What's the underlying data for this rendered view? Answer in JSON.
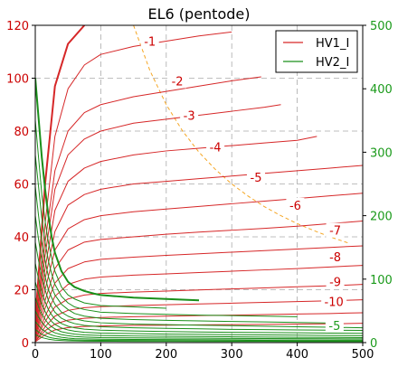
{
  "chart_data": {
    "type": "line",
    "title": "EL6 (pentode)",
    "xlabel": "",
    "ylabel": "",
    "xlim": [
      0,
      500
    ],
    "ylim": [
      0,
      120
    ],
    "ylim_right": [
      0,
      500
    ],
    "grid": true,
    "xticks": [
      0,
      100,
      200,
      300,
      400,
      500
    ],
    "yticks_left": [
      0,
      20,
      40,
      60,
      80,
      100,
      120
    ],
    "yticks_right": [
      0,
      100,
      200,
      300,
      400,
      500
    ],
    "legend": {
      "placement": "top-right",
      "entries": [
        {
          "label": "HV1_I",
          "color": "#d62728"
        },
        {
          "label": "HV2_I",
          "color": "#1a8f1a"
        }
      ]
    },
    "colors": {
      "left_axis": "#cc0000",
      "right_axis": "#1a9a1a",
      "hv1": "#d62728",
      "hv2": "#1a8f1a",
      "power_limit": "#f5a623",
      "grid": "#aaaaaa"
    },
    "power_limit": {
      "style": "dashed",
      "x": [
        150,
        175,
        200,
        225,
        250,
        275,
        300,
        325,
        350,
        375,
        400,
        425,
        450,
        480
      ],
      "y": [
        120.0,
        102.9,
        90.0,
        80.0,
        72.0,
        65.5,
        60.0,
        55.4,
        51.4,
        48.0,
        45.0,
        42.4,
        40.0,
        37.5
      ]
    },
    "series": [
      {
        "name": "HV1_I",
        "color": "#d62728",
        "width": 2,
        "x": [
          0,
          15,
          30,
          50,
          75
        ],
        "y": [
          8,
          60,
          97,
          113,
          120
        ]
      },
      {
        "name": "HV1_I",
        "color": "#d62728",
        "width": 1,
        "x": [
          0,
          15,
          30,
          50,
          75,
          100,
          150,
          200,
          250,
          300
        ],
        "y": [
          5,
          45,
          78,
          96,
          105,
          109,
          112,
          114,
          116,
          117.5
        ]
      },
      {
        "name": "HV1_I",
        "color": "#d62728",
        "width": 1,
        "x": [
          0,
          15,
          30,
          50,
          75,
          100,
          150,
          200,
          250,
          300,
          345
        ],
        "y": [
          4,
          38,
          65,
          80,
          87,
          90,
          93,
          95,
          97,
          99,
          100.5
        ]
      },
      {
        "name": "HV1_I",
        "color": "#d62728",
        "width": 1,
        "x": [
          0,
          15,
          30,
          50,
          75,
          100,
          150,
          200,
          250,
          300,
          350,
          375
        ],
        "y": [
          4,
          33,
          58,
          71,
          77,
          80,
          83,
          84.5,
          86,
          87.5,
          89,
          90
        ]
      },
      {
        "name": "HV1_I",
        "color": "#d62728",
        "width": 1,
        "x": [
          0,
          15,
          30,
          50,
          75,
          100,
          150,
          200,
          250,
          300,
          350,
          400,
          430
        ],
        "y": [
          3,
          28,
          50,
          61,
          66,
          68.5,
          71,
          72.5,
          73.5,
          74.5,
          75.5,
          76.5,
          78
        ]
      },
      {
        "name": "HV1_I",
        "color": "#d62728",
        "width": 1,
        "x": [
          0,
          15,
          30,
          50,
          75,
          100,
          150,
          200,
          250,
          300,
          350,
          400,
          450,
          500
        ],
        "y": [
          3,
          24,
          42,
          52,
          56,
          58,
          60,
          61,
          62,
          63,
          64,
          65,
          66,
          67
        ]
      },
      {
        "name": "HV1_I",
        "color": "#d62728",
        "width": 1,
        "x": [
          0,
          15,
          30,
          50,
          75,
          100,
          150,
          200,
          250,
          300,
          350,
          400,
          450,
          500
        ],
        "y": [
          2,
          20,
          35,
          43,
          46.5,
          48,
          49.5,
          50.5,
          51.5,
          52.5,
          53.5,
          54.5,
          55.5,
          56.5
        ]
      },
      {
        "name": "HV1_I",
        "color": "#d62728",
        "width": 1,
        "x": [
          0,
          15,
          30,
          50,
          75,
          100,
          150,
          200,
          250,
          300,
          350,
          400,
          450,
          500
        ],
        "y": [
          2,
          16,
          28,
          35,
          38,
          39,
          40,
          41,
          41.8,
          42.5,
          43.2,
          44,
          45,
          46
        ]
      },
      {
        "name": "HV1_I",
        "color": "#d62728",
        "width": 1,
        "x": [
          0,
          15,
          30,
          50,
          75,
          100,
          150,
          200,
          250,
          300,
          350,
          400,
          450,
          500
        ],
        "y": [
          1.5,
          13,
          22.5,
          28,
          30.5,
          31.5,
          32.3,
          33,
          33.6,
          34.2,
          34.8,
          35.4,
          36,
          36.6
        ]
      },
      {
        "name": "HV1_I",
        "color": "#d62728",
        "width": 1,
        "x": [
          0,
          15,
          30,
          50,
          75,
          100,
          150,
          200,
          250,
          300,
          350,
          400,
          450,
          500
        ],
        "y": [
          1,
          10,
          17.5,
          22,
          24,
          24.8,
          25.5,
          26,
          26.5,
          27,
          27.5,
          28,
          28.6,
          29.2
        ]
      },
      {
        "name": "HV1_I",
        "color": "#d62728",
        "width": 1,
        "x": [
          0,
          15,
          30,
          50,
          75,
          100,
          150,
          200,
          250,
          300,
          350,
          400,
          450,
          500
        ],
        "y": [
          1,
          8,
          13.5,
          16.5,
          18,
          18.6,
          19.1,
          19.5,
          19.9,
          20.3,
          20.7,
          21.1,
          21.5,
          22
        ]
      },
      {
        "name": "HV1_I",
        "color": "#d62728",
        "width": 1,
        "x": [
          0,
          15,
          30,
          50,
          75,
          100,
          150,
          200,
          250,
          300,
          350,
          400,
          450,
          500
        ],
        "y": [
          0.5,
          6,
          10,
          12.2,
          13.2,
          13.6,
          14,
          14.3,
          14.6,
          14.9,
          15.2,
          15.5,
          15.8,
          16.2
        ]
      },
      {
        "name": "HV1_I",
        "color": "#d62728",
        "width": 1,
        "x": [
          0,
          15,
          30,
          50,
          75,
          100,
          150,
          200,
          250,
          300,
          350,
          400,
          450,
          500
        ],
        "y": [
          0.5,
          4.5,
          7,
          8.5,
          9.2,
          9.5,
          9.8,
          10,
          10.2,
          10.4,
          10.6,
          10.8,
          11,
          11.3
        ]
      },
      {
        "name": "HV1_I",
        "color": "#d62728",
        "width": 1,
        "x": [
          0,
          15,
          30,
          50,
          75,
          100,
          150,
          200,
          250,
          300,
          350,
          400,
          450,
          500
        ],
        "y": [
          0.3,
          3,
          4.8,
          5.7,
          6.1,
          6.3,
          6.5,
          6.6,
          6.7,
          6.8,
          6.9,
          7,
          7.1,
          7.3
        ]
      },
      {
        "name": "HV2_I",
        "color": "#1a8f1a",
        "width": 2,
        "x": [
          0,
          5,
          10,
          15,
          20,
          25,
          30,
          40,
          50,
          60,
          75,
          90,
          100,
          125,
          150,
          200,
          250
        ],
        "y": [
          100,
          85,
          70,
          58,
          48,
          40,
          34,
          27,
          23,
          21,
          19.5,
          18.5,
          18,
          17.5,
          17,
          16.5,
          16
        ]
      },
      {
        "name": "HV2_I",
        "color": "#1a8f1a",
        "width": 1,
        "x": [
          0,
          5,
          10,
          15,
          20,
          25,
          30,
          40,
          50,
          60,
          75,
          100,
          150,
          200
        ],
        "y": [
          84,
          70,
          56,
          46,
          38,
          32,
          27,
          21,
          18,
          16.5,
          15,
          14,
          13.5,
          13
        ]
      },
      {
        "name": "HV2_I",
        "color": "#1a8f1a",
        "width": 1,
        "x": [
          0,
          5,
          10,
          15,
          20,
          25,
          30,
          40,
          50,
          60,
          75,
          100,
          150,
          200,
          250,
          300,
          350,
          400
        ],
        "y": [
          71,
          59,
          47,
          38,
          31,
          26,
          22,
          17.5,
          15,
          13.5,
          12.5,
          11.5,
          11,
          10.7,
          10.4,
          10.2,
          10,
          9.8
        ]
      },
      {
        "name": "HV2_I",
        "color": "#1a8f1a",
        "width": 1,
        "x": [
          0,
          5,
          10,
          15,
          20,
          25,
          30,
          40,
          50,
          60,
          75,
          100,
          150,
          200,
          250,
          300,
          350,
          400,
          450
        ],
        "y": [
          59,
          48,
          38,
          31,
          25,
          21,
          18,
          14.5,
          12.5,
          11,
          10,
          9.2,
          8.7,
          8.4,
          8.2,
          8,
          7.8,
          7.6,
          7.4
        ]
      },
      {
        "name": "HV2_I",
        "color": "#1a8f1a",
        "width": 1,
        "x": [
          0,
          5,
          10,
          15,
          20,
          25,
          30,
          40,
          50,
          60,
          75,
          100,
          150,
          200,
          250,
          300,
          350,
          400,
          450,
          500
        ],
        "y": [
          48,
          39,
          31,
          25,
          20,
          17,
          14.5,
          11.5,
          10,
          9,
          8.2,
          7.5,
          7,
          6.8,
          6.6,
          6.4,
          6.2,
          6,
          5.8,
          5.6
        ]
      },
      {
        "name": "HV2_I",
        "color": "#1a8f1a",
        "width": 1,
        "x": [
          0,
          5,
          10,
          15,
          20,
          25,
          30,
          40,
          50,
          60,
          75,
          100,
          150,
          200,
          250,
          300,
          350,
          400,
          450,
          500
        ],
        "y": [
          38,
          31,
          25,
          20,
          16,
          13.5,
          11.5,
          9.2,
          8,
          7.2,
          6.5,
          6,
          5.6,
          5.4,
          5.2,
          5,
          4.9,
          4.8,
          4.7,
          4.6
        ]
      },
      {
        "name": "HV2_I",
        "color": "#1a8f1a",
        "width": 1,
        "x": [
          0,
          5,
          10,
          15,
          20,
          25,
          30,
          40,
          50,
          60,
          75,
          100,
          150,
          200,
          250,
          300,
          350,
          400,
          450,
          500
        ],
        "y": [
          30,
          24,
          19,
          15.5,
          12.5,
          10.5,
          9,
          7.2,
          6.2,
          5.6,
          5.1,
          4.7,
          4.4,
          4.2,
          4,
          3.9,
          3.8,
          3.7,
          3.6,
          3.5
        ]
      },
      {
        "name": "HV2_I",
        "color": "#1a8f1a",
        "width": 1,
        "x": [
          0,
          5,
          10,
          15,
          20,
          25,
          30,
          40,
          50,
          60,
          75,
          100,
          150,
          200,
          250,
          300,
          350,
          400,
          450,
          500
        ],
        "y": [
          23,
          18.5,
          14.5,
          11.8,
          9.5,
          8,
          6.9,
          5.5,
          4.8,
          4.3,
          3.9,
          3.6,
          3.4,
          3.2,
          3.1,
          3,
          2.9,
          2.8,
          2.7,
          2.6
        ]
      },
      {
        "name": "HV2_I",
        "color": "#1a8f1a",
        "width": 1,
        "x": [
          0,
          5,
          10,
          15,
          20,
          25,
          30,
          40,
          50,
          60,
          75,
          100,
          150,
          200,
          250,
          300,
          350,
          400,
          450,
          500
        ],
        "y": [
          17,
          13.5,
          10.8,
          8.8,
          7.1,
          6,
          5.2,
          4.1,
          3.6,
          3.2,
          2.9,
          2.7,
          2.5,
          2.4,
          2.3,
          2.2,
          2.1,
          2,
          1.95,
          1.9
        ]
      },
      {
        "name": "HV2_I",
        "color": "#1a8f1a",
        "width": 1,
        "x": [
          0,
          5,
          10,
          15,
          20,
          25,
          30,
          40,
          50,
          60,
          75,
          100,
          150,
          200,
          250,
          300,
          350,
          400,
          450,
          500
        ],
        "y": [
          12,
          9.6,
          7.7,
          6.3,
          5.1,
          4.3,
          3.7,
          3,
          2.6,
          2.3,
          2.1,
          1.9,
          1.8,
          1.7,
          1.65,
          1.6,
          1.55,
          1.5,
          1.45,
          1.4
        ]
      },
      {
        "name": "HV2_I",
        "color": "#1a8f1a",
        "width": 1,
        "x": [
          0,
          5,
          10,
          15,
          20,
          25,
          30,
          40,
          50,
          60,
          75,
          100,
          150,
          200,
          250,
          300,
          350,
          400,
          450,
          500
        ],
        "y": [
          8,
          6.4,
          5.1,
          4.2,
          3.4,
          2.9,
          2.5,
          2,
          1.7,
          1.5,
          1.4,
          1.3,
          1.2,
          1.15,
          1.1,
          1.05,
          1,
          0.98,
          0.95,
          0.92
        ]
      },
      {
        "name": "HV2_I",
        "color": "#1a8f1a",
        "width": 1,
        "x": [
          0,
          5,
          10,
          15,
          20,
          25,
          30,
          40,
          50,
          60,
          75,
          100,
          150,
          200,
          250,
          300,
          350,
          400,
          450,
          500
        ],
        "y": [
          5,
          4,
          3.2,
          2.6,
          2.1,
          1.8,
          1.6,
          1.3,
          1.1,
          1,
          0.9,
          0.85,
          0.8,
          0.75,
          0.72,
          0.7,
          0.68,
          0.66,
          0.64,
          0.62
        ]
      },
      {
        "name": "HV2_I",
        "color": "#1a8f1a",
        "width": 1,
        "x": [
          0,
          5,
          10,
          15,
          20,
          25,
          30,
          40,
          50,
          60,
          75,
          100,
          150,
          200,
          250,
          300,
          350,
          400,
          450,
          500
        ],
        "y": [
          3,
          2.4,
          1.9,
          1.6,
          1.3,
          1.1,
          0.95,
          0.8,
          0.7,
          0.62,
          0.56,
          0.52,
          0.48,
          0.45,
          0.43,
          0.42,
          0.41,
          0.4,
          0.39,
          0.38
        ]
      }
    ],
    "annotations": [
      {
        "text": "-1",
        "x": 175,
        "y": 114,
        "color": "#cc0000"
      },
      {
        "text": "-2",
        "x": 217,
        "y": 99,
        "color": "#cc0000"
      },
      {
        "text": "-3",
        "x": 235,
        "y": 86,
        "color": "#cc0000"
      },
      {
        "text": "-4",
        "x": 275,
        "y": 74,
        "color": "#cc0000"
      },
      {
        "text": "-5",
        "x": 337,
        "y": 62.5,
        "color": "#cc0000"
      },
      {
        "text": "-6",
        "x": 397,
        "y": 52,
        "color": "#cc0000"
      },
      {
        "text": "-7",
        "x": 458,
        "y": 42.5,
        "color": "#cc0000"
      },
      {
        "text": "-8",
        "x": 458,
        "y": 32.5,
        "color": "#cc0000"
      },
      {
        "text": "-9",
        "x": 458,
        "y": 23,
        "color": "#cc0000"
      },
      {
        "text": "-10",
        "x": 456,
        "y": 15.5,
        "color": "#cc0000"
      },
      {
        "text": "-5",
        "x": 457,
        "y": 6.5,
        "color": "#1a9a1a"
      }
    ]
  }
}
